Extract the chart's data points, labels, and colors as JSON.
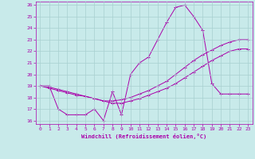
{
  "xlabel": "Windchill (Refroidissement éolien,°C)",
  "background_color": "#c8eaea",
  "grid_color": "#a8d0d0",
  "line_color": "#aa00aa",
  "xlim": [
    -0.5,
    23.5
  ],
  "ylim": [
    15.7,
    26.3
  ],
  "xticks": [
    0,
    1,
    2,
    3,
    4,
    5,
    6,
    7,
    8,
    9,
    10,
    11,
    12,
    13,
    14,
    15,
    16,
    17,
    18,
    19,
    20,
    21,
    22,
    23
  ],
  "yticks": [
    16,
    17,
    18,
    19,
    20,
    21,
    22,
    23,
    24,
    25,
    26
  ],
  "line1_x": [
    0,
    1,
    2,
    3,
    4,
    5,
    6,
    7,
    8,
    9,
    10,
    11,
    12,
    13,
    14,
    15,
    16,
    17,
    18,
    19,
    20,
    21,
    22,
    23
  ],
  "line1_y": [
    19.0,
    19.0,
    17.0,
    16.5,
    16.5,
    16.5,
    17.0,
    16.0,
    18.5,
    16.5,
    20.0,
    21.0,
    21.5,
    23.0,
    24.5,
    25.8,
    26.0,
    25.0,
    23.8,
    19.2,
    18.3,
    18.3,
    18.3,
    18.3
  ],
  "line2_x": [
    0,
    1,
    2,
    3,
    4,
    5,
    6,
    7,
    8,
    9,
    10,
    11,
    12,
    13,
    14,
    15,
    16,
    17,
    18,
    19,
    20,
    21,
    22,
    23
  ],
  "line2_y": [
    19.0,
    18.8,
    18.6,
    18.4,
    18.2,
    18.1,
    17.9,
    17.7,
    17.7,
    17.8,
    18.0,
    18.3,
    18.6,
    19.0,
    19.4,
    20.0,
    20.6,
    21.2,
    21.7,
    22.1,
    22.5,
    22.8,
    23.0,
    23.0
  ],
  "line3_x": [
    0,
    1,
    2,
    3,
    4,
    5,
    6,
    7,
    8,
    9,
    10,
    11,
    12,
    13,
    14,
    15,
    16,
    17,
    18,
    19,
    20,
    21,
    22,
    23
  ],
  "line3_y": [
    19.0,
    18.9,
    18.7,
    18.5,
    18.3,
    18.1,
    17.9,
    17.7,
    17.5,
    17.5,
    17.7,
    17.9,
    18.2,
    18.5,
    18.8,
    19.2,
    19.7,
    20.2,
    20.7,
    21.2,
    21.6,
    22.0,
    22.2,
    22.2
  ]
}
